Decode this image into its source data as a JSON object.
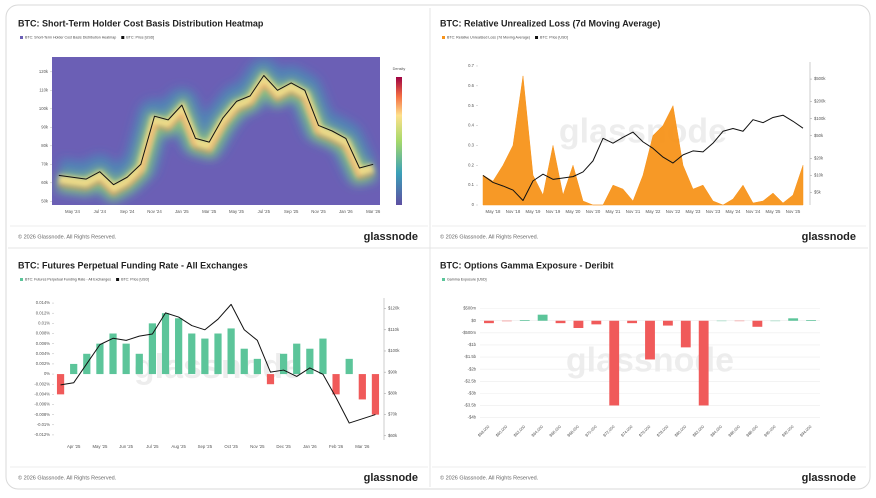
{
  "chart_data": [
    {
      "type": "heatmap",
      "title": "BTC: Short-Term Holder Cost Basis Distribution Heatmap",
      "heatmap_name": "BTC: Short-Term Holder Cost Basis Distribution Heatmap",
      "heatmap_color": "#6b5fb5",
      "categories": [
        null,
        "May '24",
        null,
        "Jul '24",
        null,
        "Sep '24",
        null,
        "Nov '24",
        null,
        "Jan '25",
        null,
        "Mar '25",
        null,
        "May '25",
        null,
        "Jul '25",
        null,
        "Sep '25",
        null,
        "Nov '25",
        null,
        "Jan '26",
        null,
        "Mar '26"
      ],
      "series": [
        {
          "name": "BTC: Price [USD]",
          "color": "#111111",
          "values": [
            64000,
            63000,
            62000,
            66000,
            59000,
            63000,
            70000,
            96000,
            94000,
            102000,
            84000,
            82000,
            95000,
            104000,
            107000,
            118000,
            110000,
            114000,
            110000,
            91000,
            88000,
            84000,
            68000,
            70000
          ]
        }
      ],
      "ylim": [
        48000,
        128000
      ],
      "yticks": [
        {
          "value": 50000,
          "label": "50k"
        },
        {
          "value": 60000,
          "label": "60k"
        },
        {
          "value": 70000,
          "label": "70k"
        },
        {
          "value": 80000,
          "label": "80k"
        },
        {
          "value": 90000,
          "label": "90k"
        },
        {
          "value": 100000,
          "label": "100k"
        },
        {
          "value": 110000,
          "label": "110k"
        },
        {
          "value": 120000,
          "label": "120k"
        }
      ],
      "colorbar_label": "Density",
      "grid": false,
      "watermark": "glassnode",
      "footer": "© 2026 Glassnode. All Rights Reserved.",
      "logo": "glassnode"
    },
    {
      "type": "area",
      "title": "BTC: Relative Unrealized Loss (7d Moving Average)",
      "categories": [
        null,
        "May '18",
        null,
        "Nov '18",
        null,
        "May '19",
        null,
        "Nov '19",
        null,
        "May '20",
        null,
        "Nov '20",
        null,
        "May '21",
        null,
        "Nov '21",
        null,
        "May '22",
        null,
        "Nov '22",
        null,
        "May '23",
        null,
        "Nov '23",
        null,
        "May '24",
        null,
        "Nov '24",
        null,
        "May '25",
        null,
        "Nov '25",
        null
      ],
      "series": [
        {
          "name": "BTC: Relative Unrealized Loss (7d Moving Average)",
          "color": "#f7931a",
          "values": [
            0.15,
            0.12,
            0.2,
            0.3,
            0.65,
            0.15,
            0.05,
            0.3,
            0.05,
            0.2,
            0.02,
            0,
            0,
            0.1,
            0.08,
            0.02,
            0.15,
            0.35,
            0.4,
            0.5,
            0.2,
            0.08,
            0.1,
            0.02,
            0,
            0.03,
            0.1,
            0.01,
            0.02,
            0.06,
            0.01,
            0.05,
            0.2
          ]
        },
        {
          "name": "BTC: Price [USD]",
          "color": "#111111",
          "axis": "y2",
          "values": [
            10000,
            7500,
            6500,
            5500,
            3600,
            8000,
            10500,
            8500,
            9000,
            9500,
            11500,
            18000,
            45000,
            37000,
            47000,
            58000,
            39000,
            30000,
            21000,
            16500,
            23000,
            27000,
            26000,
            37000,
            60000,
            67000,
            60000,
            96000,
            85000,
            105000,
            115000,
            90000,
            68000
          ]
        }
      ],
      "ylim": [
        0,
        0.72
      ],
      "yticks": [
        0,
        0.1,
        0.2,
        0.3,
        0.4,
        0.5,
        0.6,
        0.7
      ],
      "y2lim": [
        3000,
        1000000
      ],
      "y2log": true,
      "y2ticks": [
        {
          "value": 5000,
          "label": "$5k"
        },
        {
          "value": 10000,
          "label": "$10k"
        },
        {
          "value": 20000,
          "label": "$20k"
        },
        {
          "value": 50000,
          "label": "$50k"
        },
        {
          "value": 100000,
          "label": "$100k"
        },
        {
          "value": 200000,
          "label": "$200k"
        },
        {
          "value": 500000,
          "label": "$500k"
        }
      ],
      "grid": false,
      "watermark": "glassnode",
      "footer": "© 2026 Glassnode. All Rights Reserved.",
      "logo": "glassnode"
    },
    {
      "type": "bar",
      "title": "BTC: Futures Perpetual Funding Rate - All Exchanges",
      "categories": [
        null,
        "Apr '25",
        null,
        "May '25",
        null,
        "Jun '25",
        null,
        "Jul '25",
        null,
        "Aug '25",
        null,
        "Sep '25",
        null,
        "Oct '25",
        null,
        "Nov '25",
        null,
        "Dec '25",
        null,
        "Jan '26",
        null,
        "Feb '26",
        null,
        "Mar '26",
        null
      ],
      "series": [
        {
          "name": "BTC: Futures Perpetual Funding Rate - All Exchanges",
          "color": "#5cc59a",
          "negative_color": "#f05a5a",
          "values": [
            -0.004,
            0.002,
            0.004,
            0.006,
            0.008,
            0.006,
            0.004,
            0.01,
            0.012,
            0.011,
            0.008,
            0.007,
            0.008,
            0.009,
            0.005,
            0.003,
            -0.002,
            0.004,
            0.006,
            0.005,
            0.007,
            -0.004,
            0.003,
            -0.005,
            -0.008
          ]
        },
        {
          "name": "BTC: Price [USD]",
          "color": "#111111",
          "axis": "y2",
          "values": [
            84000,
            85000,
            94000,
            103000,
            106000,
            105000,
            107000,
            108000,
            118000,
            116000,
            112000,
            110000,
            115000,
            122000,
            110000,
            105000,
            90000,
            91000,
            88000,
            92000,
            89000,
            78000,
            66000,
            68000,
            70000
          ]
        }
      ],
      "ylim": [
        -0.013,
        0.015
      ],
      "yticks": [
        {
          "value": -0.012,
          "label": "-0.012%"
        },
        {
          "value": -0.01,
          "label": "-0.01%"
        },
        {
          "value": -0.008,
          "label": "-0.008%"
        },
        {
          "value": -0.006,
          "label": "-0.006%"
        },
        {
          "value": -0.004,
          "label": "-0.004%"
        },
        {
          "value": -0.002,
          "label": "-0.002%"
        },
        {
          "value": 0,
          "label": "0%"
        },
        {
          "value": 0.002,
          "label": "0.002%"
        },
        {
          "value": 0.004,
          "label": "0.004%"
        },
        {
          "value": 0.006,
          "label": "0.006%"
        },
        {
          "value": 0.008,
          "label": "0.008%"
        },
        {
          "value": 0.01,
          "label": "0.01%"
        },
        {
          "value": 0.012,
          "label": "0.012%"
        },
        {
          "value": 0.014,
          "label": "0.014%"
        }
      ],
      "y2lim": [
        58000,
        125000
      ],
      "y2ticks": [
        {
          "value": 60000,
          "label": "$60k"
        },
        {
          "value": 70000,
          "label": "$70k"
        },
        {
          "value": 80000,
          "label": "$80k"
        },
        {
          "value": 90000,
          "label": "$90k"
        },
        {
          "value": 100000,
          "label": "$100k"
        },
        {
          "value": 110000,
          "label": "$110k"
        },
        {
          "value": 120000,
          "label": "$120k"
        }
      ],
      "grid": false,
      "watermark": "glassnode",
      "footer": "© 2026 Glassnode. All Rights Reserved.",
      "logo": "glassnode"
    },
    {
      "type": "bar",
      "title": "BTC: Options Gamma Exposure - Deribit",
      "categories": [
        "$58,000",
        "$60,000",
        "$62,000",
        "$64,000",
        "$66,000",
        "$68,000",
        "$70,000",
        "$72,000",
        "$74,000",
        "$76,000",
        "$78,000",
        "$80,000",
        "$82,000",
        "$84,000",
        "$86,000",
        "$88,000",
        "$90,000",
        "$92,000",
        "$94,000"
      ],
      "series": [
        {
          "name": "Gamma Exposure [USD]",
          "color": "#5cc59a",
          "negative_color": "#f05a5a",
          "values": [
            -100000000,
            -20000000,
            30000000,
            250000000,
            -100000000,
            -300000000,
            -150000000,
            -3500000000,
            -100000000,
            -1600000000,
            -200000000,
            -1100000000,
            -3500000000,
            0,
            -10000000,
            -250000000,
            0,
            100000000,
            30000000
          ]
        }
      ],
      "ylim": [
        -4100000000,
        650000000
      ],
      "yticks": [
        {
          "value": 500000000,
          "label": "$500m"
        },
        {
          "value": 0,
          "label": "$0"
        },
        {
          "value": -500000000,
          "label": "-$500m"
        },
        {
          "value": -1000000000,
          "label": "-$1b"
        },
        {
          "value": -1500000000,
          "label": "-$1.5b"
        },
        {
          "value": -2000000000,
          "label": "-$2b"
        },
        {
          "value": -2500000000,
          "label": "-$2.5b"
        },
        {
          "value": -3000000000,
          "label": "-$3b"
        },
        {
          "value": -3500000000,
          "label": "-$3.5b"
        },
        {
          "value": -4000000000,
          "label": "-$4b"
        }
      ],
      "grid": true,
      "watermark": "glassnode",
      "footer": "© 2026 Glassnode. All Rights Reserved.",
      "logo": "glassnode"
    }
  ]
}
